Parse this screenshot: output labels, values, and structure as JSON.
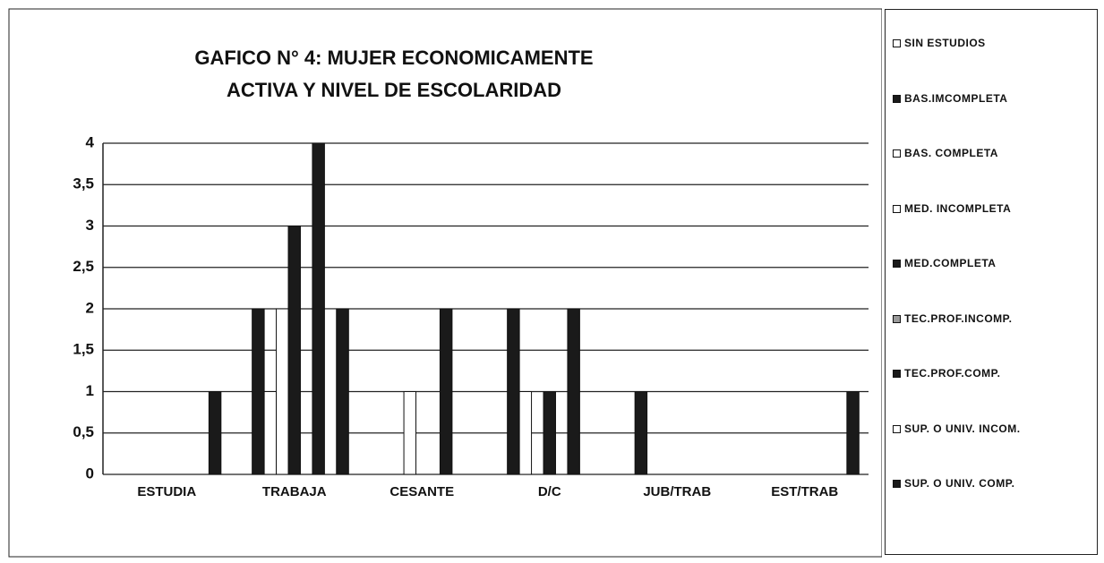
{
  "chart_data": {
    "type": "bar",
    "title": [
      "GAFICO N° 4: MUJER ECONOMICAMENTE",
      "ACTIVA Y NIVEL DE ESCOLARIDAD"
    ],
    "categories": [
      "ESTUDIA",
      "TRABAJA",
      "CESANTE",
      "D/C",
      "JUB/TRAB",
      "EST/TRAB"
    ],
    "series": [
      {
        "name": "SIN ESTUDIOS",
        "color": "#ffffff",
        "values": [
          0,
          0,
          0,
          0,
          0,
          0
        ]
      },
      {
        "name": "BAS.IMCOMPLETA",
        "color": "#1a1a1a",
        "values": [
          0,
          2,
          0,
          2,
          1,
          0
        ]
      },
      {
        "name": "BAS. COMPLETA",
        "color": "#ffffff",
        "values": [
          0,
          1,
          0,
          1,
          0,
          0
        ]
      },
      {
        "name": "MED. INCOMPLETA",
        "color": "#ffffff",
        "values": [
          0,
          2,
          1,
          0,
          0,
          0
        ]
      },
      {
        "name": "MED.COMPLETA",
        "color": "#1a1a1a",
        "values": [
          0,
          3,
          0,
          1,
          0,
          0
        ]
      },
      {
        "name": "TEC.PROF.INCOMP.",
        "color": "#9a9a9a",
        "values": [
          0,
          0,
          0,
          0,
          0,
          0
        ]
      },
      {
        "name": "TEC.PROF.COMP.",
        "color": "#1a1a1a",
        "values": [
          0,
          4,
          2,
          2,
          0,
          0
        ]
      },
      {
        "name": "SUP. O UNIV. INCOM.",
        "color": "#ffffff",
        "values": [
          0,
          2,
          0,
          0,
          0,
          0
        ]
      },
      {
        "name": "SUP. O UNIV. COMP.",
        "color": "#1a1a1a",
        "values": [
          1,
          2,
          0,
          0,
          0,
          1
        ]
      }
    ],
    "ylim": [
      0,
      4
    ],
    "yticks": [
      0,
      {
        "value": 0.5,
        "label": "0,5"
      },
      1,
      {
        "value": 1.5,
        "label": "1,5"
      },
      2,
      {
        "value": 2.5,
        "label": "2,5"
      },
      3,
      {
        "value": 3.5,
        "label": "3,5"
      },
      4
    ],
    "grid": true
  }
}
